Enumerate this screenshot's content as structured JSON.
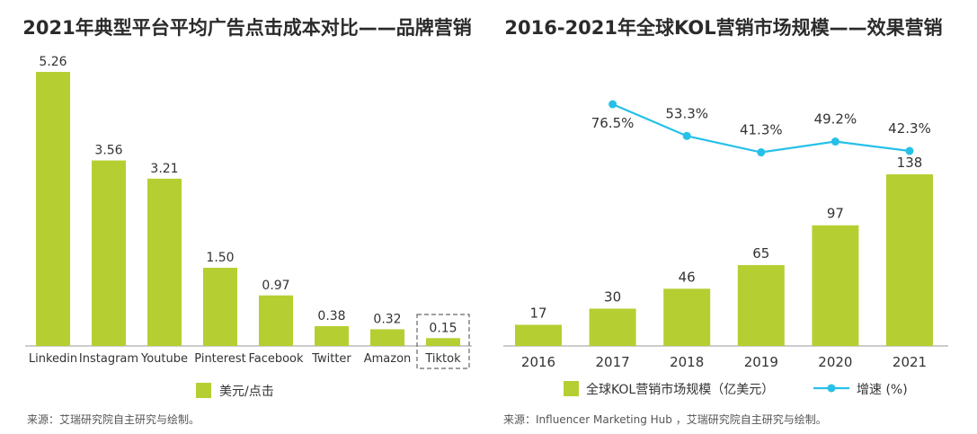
{
  "left_chart": {
    "title": "2021年典型平台平均广告点击成本对比——品牌营销",
    "source": "来源：艾瑞研究院自主研究与绘制。",
    "chart_data": {
      "type": "bar",
      "title": "2021年典型平台平均广告点击成本对比——品牌营销",
      "categories": [
        "Linkedin",
        "Instagram",
        "Youtube",
        "Pinterest",
        "Facebook",
        "Twitter",
        "Amazon",
        "Tiktok"
      ],
      "series": [
        {
          "name": "美元/点击",
          "values": [
            5.26,
            3.56,
            3.21,
            1.5,
            0.97,
            0.38,
            0.32,
            0.15
          ]
        }
      ],
      "value_labels": [
        "5.26",
        "3.56",
        "3.21",
        "1.50",
        "0.97",
        "0.38",
        "0.32",
        "0.15"
      ],
      "highlight_category": "Tiktok",
      "ylim": [
        0,
        5.26
      ],
      "grid": false,
      "legend": "bottom",
      "bar_color": "#b5cf32"
    }
  },
  "right_chart": {
    "title": "2016-2021年全球KOL营销市场规模——效果营销",
    "source": "来源：Influencer Marketing Hub ，艾瑞研究院自主研究与绘制。",
    "chart_data": {
      "type": "bar",
      "title": "2016-2021年全球KOL营销市场规模——效果营销",
      "categories": [
        "2016",
        "2017",
        "2018",
        "2019",
        "2020",
        "2021"
      ],
      "series": [
        {
          "name": "全球KOL营销市场规模（亿美元）",
          "type": "bar",
          "values": [
            17,
            30,
            46,
            65,
            97,
            138
          ],
          "color": "#b5cf32"
        },
        {
          "name": "增速 (%)",
          "type": "line",
          "values": [
            null,
            76.5,
            53.3,
            41.3,
            49.2,
            42.3
          ],
          "color": "#26c0e8"
        }
      ],
      "value_labels": [
        "17",
        "30",
        "46",
        "65",
        "97",
        "138"
      ],
      "line_labels": [
        "",
        "76.5%",
        "53.3%",
        "41.3%",
        "49.2%",
        "42.3%"
      ],
      "ylim": [
        0,
        138
      ],
      "grid": false,
      "legend": "bottom"
    }
  }
}
